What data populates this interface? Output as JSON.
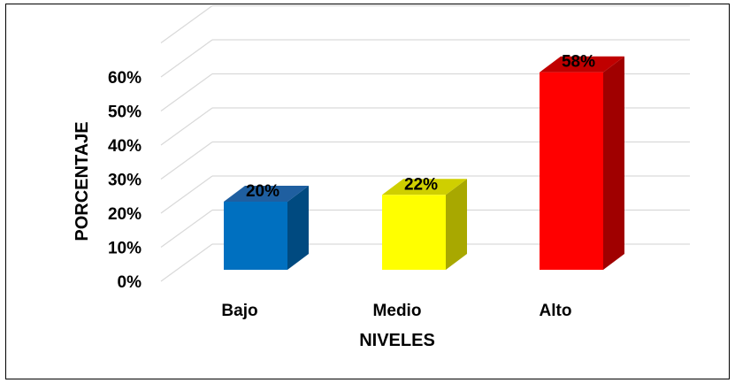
{
  "chart_data": {
    "type": "bar",
    "title": "",
    "xlabel": "NIVELES",
    "ylabel": "PORCENTAJE",
    "categories": [
      "Bajo",
      "Medio",
      "Alto"
    ],
    "values": [
      20,
      22,
      58
    ],
    "data_labels": [
      "20%",
      "22%",
      "58%"
    ],
    "ylim": [
      0,
      60
    ],
    "yticks": [
      "0%",
      "10%",
      "20%",
      "30%",
      "40%",
      "50%",
      "60%"
    ],
    "yticks_values": [
      0,
      10,
      20,
      30,
      40,
      50,
      60
    ],
    "grid": true,
    "style": "3d-column",
    "legend": "none",
    "colors": [
      {
        "front": "#0070C0",
        "side": "#004A80",
        "top": "#1F5FA0"
      },
      {
        "front": "#FFFF00",
        "side": "#A8A800",
        "top": "#CFCF00"
      },
      {
        "front": "#FF0000",
        "side": "#A00000",
        "top": "#C00000"
      }
    ]
  }
}
